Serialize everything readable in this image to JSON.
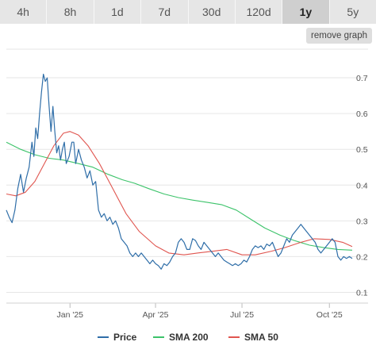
{
  "range_tabs": [
    {
      "label": "4h",
      "active": false
    },
    {
      "label": "8h",
      "active": false
    },
    {
      "label": "1d",
      "active": false
    },
    {
      "label": "7d",
      "active": false
    },
    {
      "label": "30d",
      "active": false
    },
    {
      "label": "120d",
      "active": false
    },
    {
      "label": "1y",
      "active": true
    },
    {
      "label": "5y",
      "active": false
    }
  ],
  "remove_graph_label": "remove graph",
  "colors": {
    "price": "#2f6ea8",
    "sma200": "#3cc36a",
    "sma50": "#e0554f",
    "grid": "#e6e6e6"
  },
  "chart_data": {
    "type": "line",
    "x_range": [
      "2024-10-26",
      "2025-10-25"
    ],
    "ylim": [
      0.07,
      0.78
    ],
    "y_ticks": [
      0.1,
      0.2,
      0.3,
      0.4,
      0.5,
      0.6,
      0.7
    ],
    "x_ticks": [
      {
        "label": "Jan '25",
        "date": "2025-01-01"
      },
      {
        "label": "Apr '25",
        "date": "2025-04-01"
      },
      {
        "label": "Jul '25",
        "date": "2025-07-01"
      },
      {
        "label": "Oct '25",
        "date": "2025-10-01"
      }
    ],
    "legend_position": "bottom",
    "series": [
      {
        "name": "Price",
        "color": "#2f6ea8",
        "points": [
          [
            "2024-10-26",
            0.33
          ],
          [
            "2024-10-29",
            0.31
          ],
          [
            "2024-11-01",
            0.295
          ],
          [
            "2024-11-04",
            0.33
          ],
          [
            "2024-11-07",
            0.39
          ],
          [
            "2024-11-10",
            0.43
          ],
          [
            "2024-11-13",
            0.38
          ],
          [
            "2024-11-16",
            0.42
          ],
          [
            "2024-11-19",
            0.45
          ],
          [
            "2024-11-22",
            0.52
          ],
          [
            "2024-11-24",
            0.48
          ],
          [
            "2024-11-26",
            0.56
          ],
          [
            "2024-11-28",
            0.53
          ],
          [
            "2024-11-30",
            0.6
          ],
          [
            "2024-12-02",
            0.66
          ],
          [
            "2024-12-04",
            0.71
          ],
          [
            "2024-12-06",
            0.69
          ],
          [
            "2024-12-08",
            0.7
          ],
          [
            "2024-12-10",
            0.62
          ],
          [
            "2024-12-12",
            0.55
          ],
          [
            "2024-12-14",
            0.62
          ],
          [
            "2024-12-16",
            0.55
          ],
          [
            "2024-12-18",
            0.49
          ],
          [
            "2024-12-20",
            0.51
          ],
          [
            "2024-12-22",
            0.47
          ],
          [
            "2024-12-24",
            0.5
          ],
          [
            "2024-12-26",
            0.52
          ],
          [
            "2024-12-28",
            0.46
          ],
          [
            "2024-12-31",
            0.48
          ],
          [
            "2025-01-03",
            0.52
          ],
          [
            "2025-01-05",
            0.52
          ],
          [
            "2025-01-07",
            0.46
          ],
          [
            "2025-01-10",
            0.5
          ],
          [
            "2025-01-13",
            0.47
          ],
          [
            "2025-01-16",
            0.45
          ],
          [
            "2025-01-19",
            0.42
          ],
          [
            "2025-01-22",
            0.44
          ],
          [
            "2025-01-25",
            0.4
          ],
          [
            "2025-01-28",
            0.41
          ],
          [
            "2025-01-31",
            0.33
          ],
          [
            "2025-02-03",
            0.31
          ],
          [
            "2025-02-06",
            0.32
          ],
          [
            "2025-02-09",
            0.3
          ],
          [
            "2025-02-12",
            0.31
          ],
          [
            "2025-02-15",
            0.29
          ],
          [
            "2025-02-18",
            0.3
          ],
          [
            "2025-02-21",
            0.28
          ],
          [
            "2025-02-24",
            0.25
          ],
          [
            "2025-02-27",
            0.24
          ],
          [
            "2025-03-02",
            0.23
          ],
          [
            "2025-03-05",
            0.21
          ],
          [
            "2025-03-08",
            0.2
          ],
          [
            "2025-03-11",
            0.21
          ],
          [
            "2025-03-14",
            0.2
          ],
          [
            "2025-03-17",
            0.21
          ],
          [
            "2025-03-20",
            0.2
          ],
          [
            "2025-03-23",
            0.19
          ],
          [
            "2025-03-26",
            0.18
          ],
          [
            "2025-03-29",
            0.19
          ],
          [
            "2025-04-01",
            0.18
          ],
          [
            "2025-04-04",
            0.175
          ],
          [
            "2025-04-07",
            0.165
          ],
          [
            "2025-04-10",
            0.18
          ],
          [
            "2025-04-13",
            0.175
          ],
          [
            "2025-04-16",
            0.185
          ],
          [
            "2025-04-19",
            0.2
          ],
          [
            "2025-04-22",
            0.21
          ],
          [
            "2025-04-25",
            0.24
          ],
          [
            "2025-04-28",
            0.25
          ],
          [
            "2025-05-01",
            0.24
          ],
          [
            "2025-05-04",
            0.22
          ],
          [
            "2025-05-07",
            0.22
          ],
          [
            "2025-05-10",
            0.25
          ],
          [
            "2025-05-13",
            0.245
          ],
          [
            "2025-05-16",
            0.23
          ],
          [
            "2025-05-19",
            0.22
          ],
          [
            "2025-05-22",
            0.24
          ],
          [
            "2025-05-25",
            0.23
          ],
          [
            "2025-05-28",
            0.22
          ],
          [
            "2025-05-31",
            0.21
          ],
          [
            "2025-06-03",
            0.2
          ],
          [
            "2025-06-06",
            0.21
          ],
          [
            "2025-06-09",
            0.2
          ],
          [
            "2025-06-12",
            0.19
          ],
          [
            "2025-06-15",
            0.185
          ],
          [
            "2025-06-18",
            0.18
          ],
          [
            "2025-06-21",
            0.175
          ],
          [
            "2025-06-24",
            0.18
          ],
          [
            "2025-06-27",
            0.175
          ],
          [
            "2025-06-30",
            0.18
          ],
          [
            "2025-07-03",
            0.19
          ],
          [
            "2025-07-06",
            0.185
          ],
          [
            "2025-07-09",
            0.2
          ],
          [
            "2025-07-12",
            0.22
          ],
          [
            "2025-07-15",
            0.23
          ],
          [
            "2025-07-18",
            0.225
          ],
          [
            "2025-07-21",
            0.23
          ],
          [
            "2025-07-24",
            0.22
          ],
          [
            "2025-07-27",
            0.235
          ],
          [
            "2025-07-30",
            0.23
          ],
          [
            "2025-08-02",
            0.24
          ],
          [
            "2025-08-05",
            0.22
          ],
          [
            "2025-08-08",
            0.2
          ],
          [
            "2025-08-11",
            0.21
          ],
          [
            "2025-08-14",
            0.23
          ],
          [
            "2025-08-17",
            0.25
          ],
          [
            "2025-08-20",
            0.24
          ],
          [
            "2025-08-23",
            0.26
          ],
          [
            "2025-08-26",
            0.27
          ],
          [
            "2025-08-29",
            0.28
          ],
          [
            "2025-09-01",
            0.29
          ],
          [
            "2025-09-04",
            0.28
          ],
          [
            "2025-09-07",
            0.27
          ],
          [
            "2025-09-10",
            0.26
          ],
          [
            "2025-09-13",
            0.25
          ],
          [
            "2025-09-16",
            0.24
          ],
          [
            "2025-09-19",
            0.22
          ],
          [
            "2025-09-22",
            0.21
          ],
          [
            "2025-09-25",
            0.22
          ],
          [
            "2025-09-28",
            0.23
          ],
          [
            "2025-10-01",
            0.24
          ],
          [
            "2025-10-04",
            0.25
          ],
          [
            "2025-10-07",
            0.24
          ],
          [
            "2025-10-10",
            0.2
          ],
          [
            "2025-10-13",
            0.19
          ],
          [
            "2025-10-16",
            0.2
          ],
          [
            "2025-10-19",
            0.195
          ],
          [
            "2025-10-22",
            0.2
          ],
          [
            "2025-10-25",
            0.195
          ]
        ]
      },
      {
        "name": "SMA 200",
        "color": "#3cc36a",
        "points": [
          [
            "2024-10-26",
            0.52
          ],
          [
            "2024-11-10",
            0.5
          ],
          [
            "2024-11-25",
            0.485
          ],
          [
            "2024-12-10",
            0.475
          ],
          [
            "2024-12-25",
            0.47
          ],
          [
            "2025-01-10",
            0.46
          ],
          [
            "2025-01-25",
            0.45
          ],
          [
            "2025-02-10",
            0.43
          ],
          [
            "2025-02-25",
            0.415
          ],
          [
            "2025-03-10",
            0.405
          ],
          [
            "2025-03-25",
            0.39
          ],
          [
            "2025-04-10",
            0.375
          ],
          [
            "2025-04-25",
            0.365
          ],
          [
            "2025-05-10",
            0.358
          ],
          [
            "2025-05-25",
            0.352
          ],
          [
            "2025-06-10",
            0.345
          ],
          [
            "2025-06-25",
            0.33
          ],
          [
            "2025-07-10",
            0.305
          ],
          [
            "2025-07-25",
            0.28
          ],
          [
            "2025-08-10",
            0.26
          ],
          [
            "2025-08-25",
            0.245
          ],
          [
            "2025-09-10",
            0.232
          ],
          [
            "2025-09-25",
            0.225
          ],
          [
            "2025-10-10",
            0.22
          ],
          [
            "2025-10-25",
            0.218
          ]
        ]
      },
      {
        "name": "SMA 50",
        "color": "#e0554f",
        "points": [
          [
            "2024-10-26",
            0.375
          ],
          [
            "2024-11-05",
            0.37
          ],
          [
            "2024-11-15",
            0.38
          ],
          [
            "2024-11-25",
            0.41
          ],
          [
            "2024-12-05",
            0.46
          ],
          [
            "2024-12-15",
            0.51
          ],
          [
            "2024-12-25",
            0.545
          ],
          [
            "2025-01-01",
            0.55
          ],
          [
            "2025-01-10",
            0.54
          ],
          [
            "2025-01-20",
            0.51
          ],
          [
            "2025-02-01",
            0.46
          ],
          [
            "2025-02-15",
            0.39
          ],
          [
            "2025-03-01",
            0.32
          ],
          [
            "2025-03-15",
            0.27
          ],
          [
            "2025-04-01",
            0.23
          ],
          [
            "2025-04-15",
            0.21
          ],
          [
            "2025-05-01",
            0.205
          ],
          [
            "2025-05-15",
            0.21
          ],
          [
            "2025-06-01",
            0.215
          ],
          [
            "2025-06-15",
            0.22
          ],
          [
            "2025-07-01",
            0.205
          ],
          [
            "2025-07-15",
            0.205
          ],
          [
            "2025-08-01",
            0.215
          ],
          [
            "2025-08-15",
            0.225
          ],
          [
            "2025-09-01",
            0.24
          ],
          [
            "2025-09-15",
            0.25
          ],
          [
            "2025-10-01",
            0.248
          ],
          [
            "2025-10-15",
            0.24
          ],
          [
            "2025-10-25",
            0.228
          ]
        ]
      }
    ]
  }
}
